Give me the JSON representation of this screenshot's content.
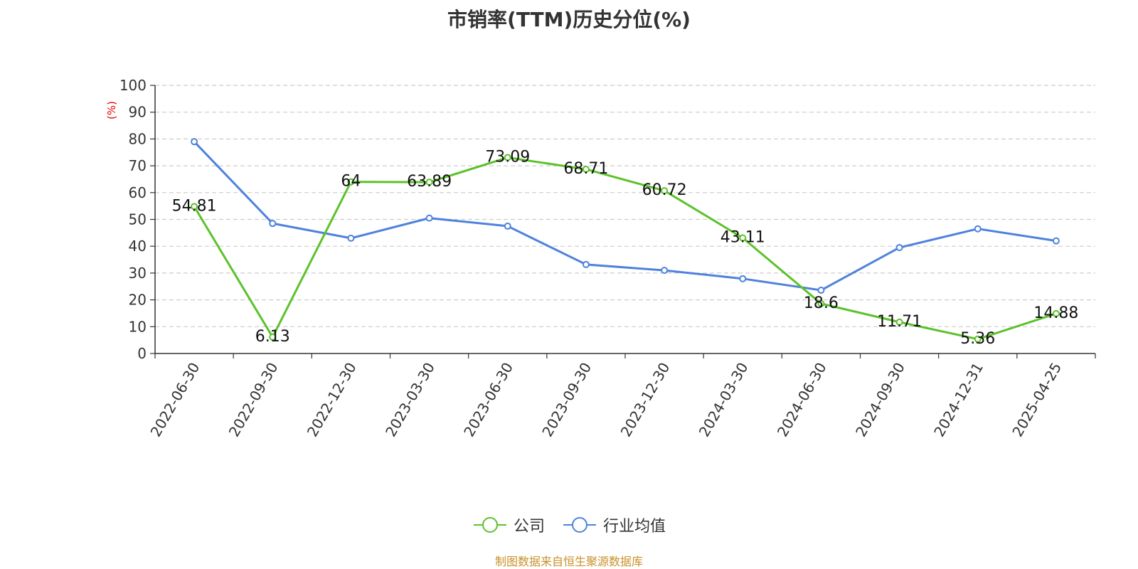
{
  "chart_data": {
    "type": "line",
    "title": "市销率(TTM)历史分位(%)",
    "ylabel": "(%)",
    "xlabel": "",
    "ylim": [
      0,
      100
    ],
    "yticks": [
      0,
      10,
      20,
      30,
      40,
      50,
      60,
      70,
      80,
      90,
      100
    ],
    "categories": [
      "2022-06-30",
      "2022-09-30",
      "2022-12-30",
      "2023-03-30",
      "2023-06-30",
      "2023-09-30",
      "2023-12-30",
      "2024-03-30",
      "2024-06-30",
      "2024-09-30",
      "2024-12-31",
      "2025-04-25"
    ],
    "grid": "horizontal-dashed",
    "legend_position": "bottom-center",
    "series": [
      {
        "name": "公司",
        "color": "#5cc22a",
        "values": [
          54.81,
          6.13,
          64,
          63.89,
          73.09,
          68.71,
          60.72,
          43.11,
          18.6,
          11.71,
          5.36,
          14.88
        ],
        "labels": [
          "54.81",
          "6.13",
          "64",
          "63.89",
          "73.09",
          "68.71",
          "60.72",
          "43.11",
          "18.6",
          "11.71",
          "5.36",
          "14.88"
        ]
      },
      {
        "name": "行业均值",
        "color": "#4e82dc",
        "values": [
          79,
          48.5,
          43,
          50.5,
          47.5,
          33.2,
          31.0,
          27.9,
          23.6,
          39.5,
          46.5,
          42.0
        ]
      }
    ],
    "ylabel_color": "#e60000"
  },
  "source_text": "制图数据来自恒生聚源数据库",
  "source_color": "#c8922a"
}
